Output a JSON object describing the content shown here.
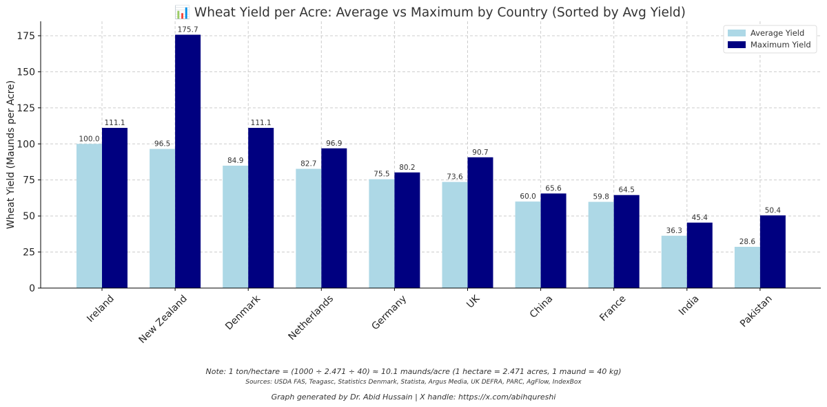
{
  "chart_data": {
    "type": "bar",
    "title": "📊 Wheat Yield per Acre: Average vs Maximum by Country (Sorted by Avg Yield)",
    "xlabel": "",
    "ylabel": "Wheat Yield (Maunds per Acre)",
    "ylim": [
      0,
      185
    ],
    "yticks": [
      0,
      25,
      50,
      75,
      100,
      125,
      150,
      175
    ],
    "categories": [
      "Ireland",
      "New Zealand",
      "Denmark",
      "Netherlands",
      "Germany",
      "UK",
      "China",
      "France",
      "India",
      "Pakistan"
    ],
    "series": [
      {
        "name": "Average Yield",
        "color": "#add8e6",
        "values": [
          100.0,
          96.5,
          84.9,
          82.7,
          75.5,
          73.6,
          60.0,
          59.8,
          36.3,
          28.6
        ],
        "labels": [
          "100.0",
          "96.5",
          "84.9",
          "82.7",
          "75.5",
          "73.6",
          "60.0",
          "59.8",
          "36.3",
          "28.6"
        ]
      },
      {
        "name": "Maximum Yield",
        "color": "#000080",
        "values": [
          111.1,
          175.7,
          111.1,
          96.9,
          80.2,
          90.7,
          65.6,
          64.5,
          45.4,
          50.4
        ],
        "labels": [
          "111.1",
          "175.7",
          "111.1",
          "96.9",
          "80.2",
          "90.7",
          "65.6",
          "64.5",
          "45.4",
          "50.4"
        ]
      }
    ],
    "grid": true,
    "legend_position": "top-right"
  },
  "footer": {
    "note": "Note: 1 ton/hectare = (1000 ÷ 2.471 ÷ 40) ≈ 10.1 maunds/acre (1 hectare = 2.471 acres, 1 maund = 40 kg)",
    "sources": "Sources: USDA FAS, Teagasc, Statistics Denmark, Statista, Argus Media, UK DEFRA, PARC, AgFlow, IndexBox",
    "credit": "Graph generated by Dr. Abid Hussain | X handle: https://x.com/abihqureshi"
  }
}
